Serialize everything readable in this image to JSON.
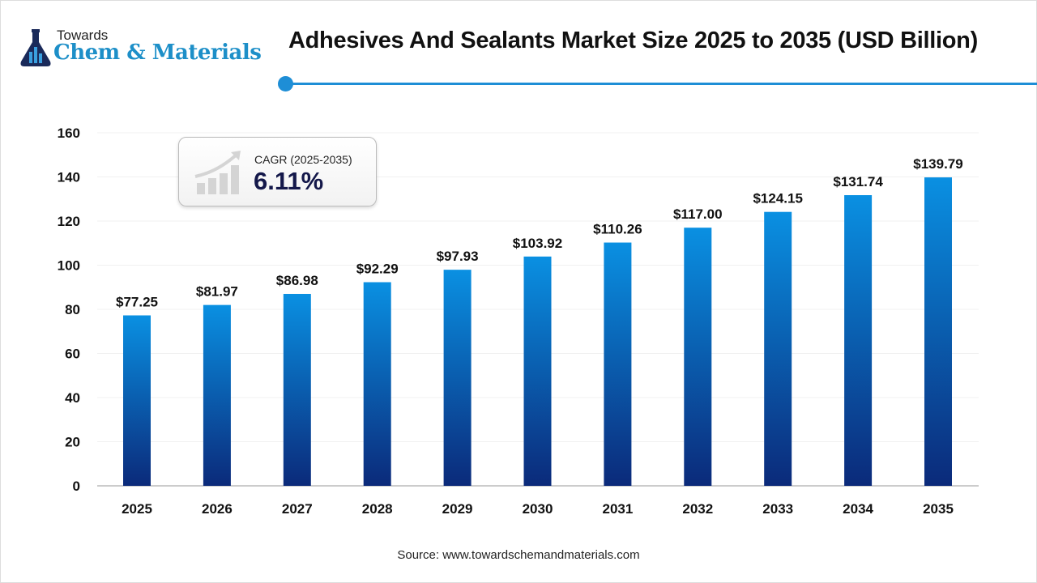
{
  "logo": {
    "line1": "Towards",
    "line2": "Chem & Materials"
  },
  "title": "Adhesives And Sealants Market Size 2025 to 2035 (USD Billion)",
  "cagr": {
    "label": "CAGR (2025-2035)",
    "value": "6.11%"
  },
  "source": "Source: www.towardschemandmaterials.com",
  "colors": {
    "accent": "#1e8ed6",
    "bar_top": "#0a90e2",
    "bar_bottom": "#0b2a7a"
  },
  "chart_data": {
    "type": "bar",
    "title": "Adhesives And Sealants Market Size 2025 to 2035 (USD Billion)",
    "categories": [
      "2025",
      "2026",
      "2027",
      "2028",
      "2029",
      "2030",
      "2031",
      "2032",
      "2033",
      "2034",
      "2035"
    ],
    "values": [
      77.25,
      81.97,
      86.98,
      92.29,
      97.93,
      103.92,
      110.26,
      117.0,
      124.15,
      131.74,
      139.79
    ],
    "data_labels": [
      "$77.25",
      "$81.97",
      "$86.98",
      "$92.29",
      "$97.93",
      "$103.92",
      "$110.26",
      "$117.00",
      "$124.15",
      "$131.74",
      "$139.79"
    ],
    "yticks": [
      0,
      20,
      40,
      60,
      80,
      100,
      120,
      140,
      160
    ],
    "ylim": [
      0,
      160
    ],
    "xlabel": "",
    "ylabel": "",
    "grid": true
  }
}
